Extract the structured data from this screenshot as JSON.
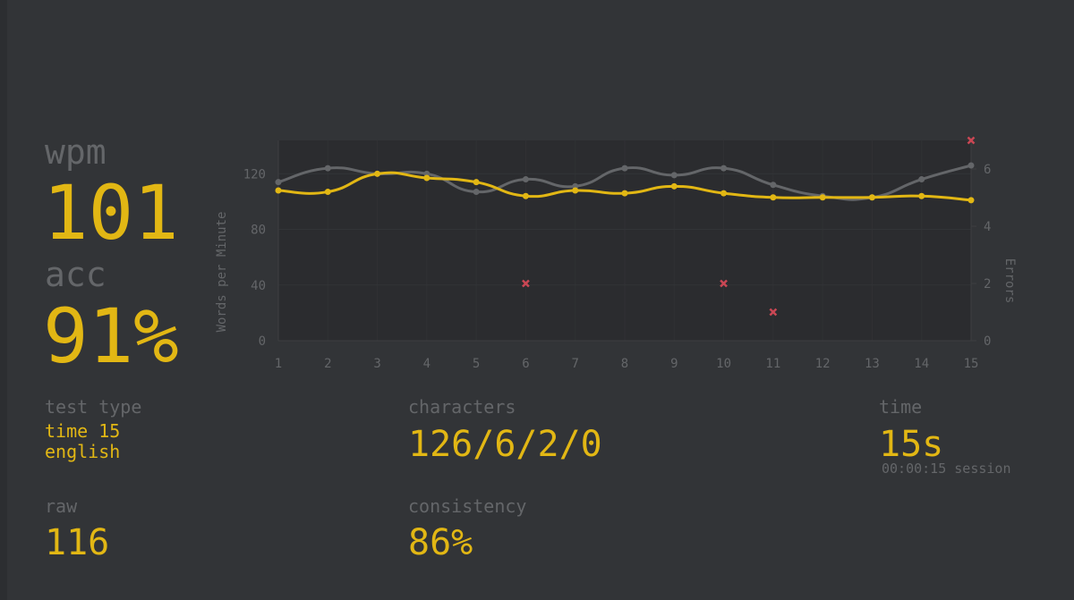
{
  "stats": {
    "wpm": {
      "label": "wpm",
      "value": "101"
    },
    "acc": {
      "label": "acc",
      "value": "91%"
    },
    "test_type": {
      "label": "test type",
      "lines": [
        "time 15",
        "english"
      ]
    },
    "raw": {
      "label": "raw",
      "value": "116"
    },
    "characters": {
      "label": "characters",
      "value": "126/6/2/0"
    },
    "consistency": {
      "label": "consistency",
      "value": "86%"
    },
    "time": {
      "label": "time",
      "value": "15s",
      "note": "00:00:15 session"
    }
  },
  "chart_data": {
    "type": "line",
    "ylabel": "Words per Minute",
    "y2label": "Errors",
    "x": [
      1,
      2,
      3,
      4,
      5,
      6,
      7,
      8,
      9,
      10,
      11,
      12,
      13,
      14,
      15
    ],
    "xlim": [
      1,
      15
    ],
    "xticks": [
      1,
      2,
      3,
      4,
      5,
      6,
      7,
      8,
      9,
      10,
      11,
      12,
      13,
      14,
      15
    ],
    "ylim": [
      0,
      144
    ],
    "yticks": [
      0,
      40,
      80,
      120
    ],
    "y2lim": [
      0,
      7
    ],
    "y2ticks": [
      0,
      2,
      4,
      6
    ],
    "grid": true,
    "series": [
      {
        "color": "#646669",
        "values": [
          114,
          124,
          120,
          120,
          107,
          116,
          111,
          124,
          119,
          124,
          112,
          104,
          103,
          116,
          126
        ]
      },
      {
        "color": "#e2b714",
        "values": [
          108,
          107,
          120,
          117,
          114,
          104,
          108,
          106,
          111,
          106,
          103,
          103,
          103,
          104,
          101
        ]
      },
      {
        "color": "#ca4754",
        "axis": "y2",
        "values": [
          null,
          null,
          null,
          null,
          null,
          2,
          null,
          null,
          null,
          2,
          1,
          null,
          null,
          null,
          7
        ]
      }
    ]
  }
}
